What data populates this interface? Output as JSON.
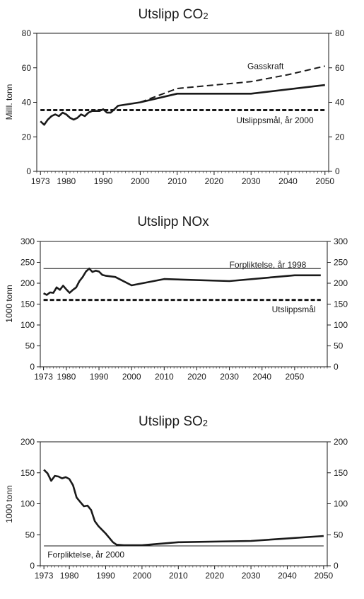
{
  "chart_data": [
    {
      "type": "line",
      "title": "Utslipp CO",
      "title_sub": "2",
      "xlabel": "",
      "ylabel": "Milll. tonn",
      "xlim": [
        1972,
        2051
      ],
      "ylim": [
        0,
        80
      ],
      "xticks": [
        1973,
        1980,
        1990,
        2000,
        2010,
        2020,
        2030,
        2040,
        2050
      ],
      "yticks": [
        0,
        20,
        40,
        60,
        80
      ],
      "secondary_y_axis": true,
      "series": [
        {
          "name": "",
          "style": "solid",
          "x": [
            1973,
            1974,
            1975,
            1976,
            1977,
            1978,
            1979,
            1980,
            1981,
            1982,
            1983,
            1984,
            1985,
            1986,
            1987,
            1988,
            1989,
            1990,
            1991,
            1992,
            1993,
            1994,
            2000,
            2010,
            2030,
            2050
          ],
          "y": [
            29,
            27,
            30,
            32,
            33,
            32,
            34,
            33,
            31,
            30,
            31,
            33,
            32,
            34,
            35,
            35,
            35,
            36,
            34,
            34,
            36,
            38,
            40,
            45,
            45,
            50
          ]
        },
        {
          "name": "Gasskraft",
          "style": "dashed",
          "x": [
            2000,
            2005,
            2010,
            2020,
            2030,
            2040,
            2050
          ],
          "y": [
            40,
            44,
            48,
            50,
            52,
            56,
            61
          ]
        },
        {
          "name": "Utslippsmål, år 2000",
          "style": "dashed-thick",
          "x": [
            1973,
            2050
          ],
          "y": [
            35.5,
            35.5
          ]
        }
      ],
      "annotations": [
        {
          "text": "Gasskraft",
          "x": 2029,
          "y": 61
        },
        {
          "text": "Utslippsmål, år 2000",
          "x": 2026,
          "y": 29.5
        }
      ]
    },
    {
      "type": "line",
      "title": "Utslipp NOx",
      "xlabel": "",
      "ylabel": "1000 tonn",
      "xlim": [
        1972,
        2060
      ],
      "ylim": [
        0,
        300
      ],
      "xticks": [
        1973,
        1980,
        1990,
        2000,
        2010,
        2020,
        2030,
        2040,
        2050
      ],
      "yticks": [
        0,
        50,
        100,
        150,
        200,
        250,
        300
      ],
      "secondary_y_axis": true,
      "series": [
        {
          "name": "",
          "style": "solid",
          "x": [
            1973,
            1974,
            1975,
            1976,
            1977,
            1978,
            1979,
            1980,
            1981,
            1982,
            1983,
            1984,
            1985,
            1986,
            1987,
            1988,
            1989,
            1990,
            1991,
            1992,
            1995,
            2000,
            2010,
            2030,
            2050,
            2058
          ],
          "y": [
            176,
            172,
            178,
            177,
            190,
            184,
            194,
            185,
            177,
            184,
            190,
            205,
            215,
            228,
            235,
            227,
            230,
            228,
            220,
            218,
            215,
            195,
            210,
            205,
            219,
            219
          ]
        },
        {
          "name": "Forpliktelse, år 1998",
          "style": "thin",
          "x": [
            1973,
            2058
          ],
          "y": [
            235,
            235
          ]
        },
        {
          "name": "Utslippsmål",
          "style": "dashed-thick",
          "x": [
            1973,
            2058
          ],
          "y": [
            160,
            160
          ]
        }
      ],
      "annotations": [
        {
          "text": "Forpliktelse, år 1998",
          "x": 2030,
          "y": 244
        },
        {
          "text": "Utslippsmål",
          "x": 2043,
          "y": 137
        }
      ]
    },
    {
      "type": "line",
      "title": "Utslipp SO",
      "title_sub": "2",
      "xlabel": "",
      "ylabel": "1000 tonn",
      "xlim": [
        1972,
        2051
      ],
      "ylim": [
        0,
        200
      ],
      "xticks": [
        1973,
        1980,
        1990,
        2000,
        2010,
        2020,
        2030,
        2040,
        2050
      ],
      "yticks": [
        0,
        50,
        100,
        150,
        200
      ],
      "secondary_y_axis": true,
      "series": [
        {
          "name": "",
          "style": "solid",
          "x": [
            1973,
            1974,
            1975,
            1976,
            1977,
            1978,
            1979,
            1980,
            1981,
            1982,
            1983,
            1984,
            1985,
            1986,
            1987,
            1988,
            1989,
            1990,
            1991,
            1992,
            1993,
            1995,
            2000,
            2010,
            2030,
            2050
          ],
          "y": [
            155,
            149,
            137,
            145,
            144,
            141,
            143,
            140,
            130,
            110,
            103,
            96,
            97,
            90,
            72,
            64,
            58,
            52,
            45,
            38,
            34,
            33,
            33,
            38,
            40,
            48
          ]
        },
        {
          "name": "Forpliktelse, år 2000",
          "style": "thin",
          "x": [
            1973,
            2050
          ],
          "y": [
            32,
            32
          ]
        }
      ],
      "annotations": [
        {
          "text": "Forpliktelse, år 2000",
          "x": 1974,
          "y": 18
        }
      ]
    }
  ]
}
